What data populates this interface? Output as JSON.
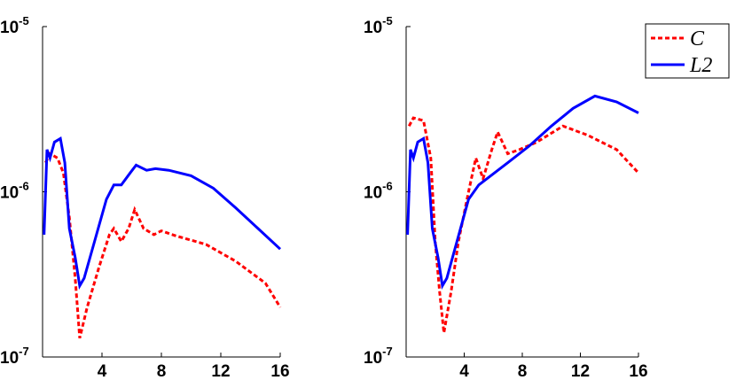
{
  "chart_data": [
    {
      "type": "line",
      "log_y": true,
      "xlim": [
        0,
        16
      ],
      "ylim": [
        1e-07,
        1e-05
      ],
      "xticks": [
        4,
        8,
        12,
        16
      ],
      "yticks": [
        {
          "value": 1e-07,
          "label": "10",
          "exponent": "-7"
        },
        {
          "value": 1e-06,
          "label": "10",
          "exponent": "-6"
        },
        {
          "value": 1e-05,
          "label": "10",
          "exponent": "-5"
        }
      ],
      "series": [
        {
          "name": "C",
          "color": "#ff0000",
          "style": "dashed",
          "x": [
            0.2,
            0.5,
            1,
            1.4,
            1.8,
            2.2,
            2.5,
            3,
            3.8,
            4.5,
            4.8,
            5.3,
            5.8,
            6.2,
            6.8,
            7.5,
            8,
            9,
            11,
            13,
            15,
            16
          ],
          "values": [
            1.5e-06,
            1.7e-06,
            1.6e-06,
            1.3e-06,
            7e-07,
            3e-07,
            1.3e-07,
            2e-07,
            3.5e-07,
            5.5e-07,
            6e-07,
            5e-07,
            6e-07,
            7.8e-07,
            6e-07,
            5.5e-07,
            5.8e-07,
            5.4e-07,
            4.8e-07,
            3.8e-07,
            2.8e-07,
            2e-07
          ]
        },
        {
          "name": "L2",
          "color": "#0000ff",
          "style": "solid",
          "x": [
            0.1,
            0.3,
            0.5,
            0.8,
            1.2,
            1.5,
            1.8,
            2.2,
            2.5,
            2.8,
            3.5,
            4.3,
            4.8,
            5.3,
            5.9,
            6.3,
            7,
            7.6,
            8.5,
            10,
            11.5,
            13,
            14.5,
            16
          ],
          "values": [
            5.5e-07,
            1.8e-06,
            1.6e-06,
            2e-06,
            2.1e-06,
            1.5e-06,
            6e-07,
            4e-07,
            2.7e-07,
            3e-07,
            5e-07,
            9e-07,
            1.1e-06,
            1.1e-06,
            1.3e-06,
            1.45e-06,
            1.35e-06,
            1.38e-06,
            1.35e-06,
            1.25e-06,
            1.05e-06,
            8e-07,
            6e-07,
            4.5e-07
          ]
        }
      ]
    },
    {
      "type": "line",
      "log_y": true,
      "legend": "outside-top-right",
      "xlim": [
        0,
        16
      ],
      "ylim": [
        1e-07,
        1e-05
      ],
      "xticks": [
        4,
        8,
        12,
        16
      ],
      "yticks": [
        {
          "value": 1e-07,
          "label": "10",
          "exponent": "-7"
        },
        {
          "value": 1e-06,
          "label": "10",
          "exponent": "-6"
        },
        {
          "value": 1e-05,
          "label": "10",
          "exponent": "-5"
        }
      ],
      "series": [
        {
          "name": "C",
          "color": "#ff0000",
          "style": "dashed",
          "x": [
            0.2,
            0.5,
            1.2,
            1.7,
            2,
            2.3,
            2.6,
            3.1,
            3.6,
            4.3,
            4.8,
            5.3,
            5.9,
            6.3,
            7,
            7.8,
            9,
            10.8,
            12.5,
            14.5,
            16
          ],
          "values": [
            2.5e-06,
            2.8e-06,
            2.7e-06,
            1.6e-06,
            5e-07,
            2.5e-07,
            1.4e-07,
            2.5e-07,
            5e-07,
            1e-06,
            1.6e-06,
            1.2e-06,
            1.8e-06,
            2.3e-06,
            1.7e-06,
            1.8e-06,
            2e-06,
            2.5e-06,
            2.2e-06,
            1.8e-06,
            1.3e-06
          ]
        },
        {
          "name": "L2",
          "color": "#0000ff",
          "style": "solid",
          "x": [
            0.1,
            0.3,
            0.5,
            0.8,
            1.2,
            1.5,
            1.8,
            2.2,
            2.5,
            2.8,
            3.5,
            4.3,
            5,
            7,
            8.5,
            10,
            11.5,
            13,
            14.5,
            16
          ],
          "values": [
            5.5e-07,
            1.8e-06,
            1.6e-06,
            2e-06,
            2.1e-06,
            1.5e-06,
            6e-07,
            4e-07,
            2.7e-07,
            3e-07,
            5e-07,
            9e-07,
            1.1e-06,
            1.5e-06,
            1.9e-06,
            2.5e-06,
            3.2e-06,
            3.8e-06,
            3.5e-06,
            3e-06
          ]
        }
      ]
    }
  ]
}
